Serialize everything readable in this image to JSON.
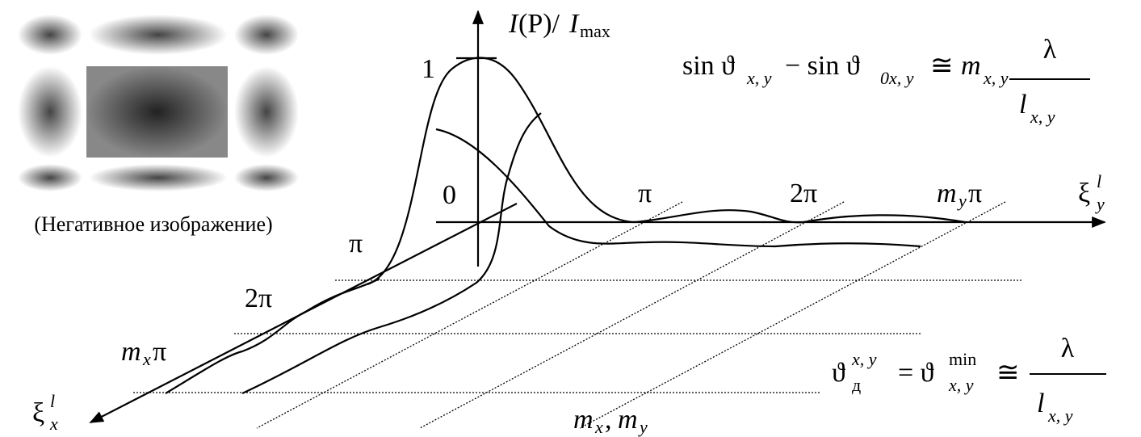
{
  "inset": {
    "caption": "(Негативное изображение)"
  },
  "intensity_axis": {
    "label": {
      "i1": "I",
      "mid": "(P)/",
      "i2": "I",
      "sub": "max"
    },
    "tick": "1",
    "origin": "0"
  },
  "y_axis": {
    "label": {
      "symbol": "ξ",
      "sup": "l",
      "sub": "y"
    },
    "ticks": {
      "pi": "π",
      "two_pi": "2π",
      "m": "m",
      "m_sub": "y",
      "m_pi": "π"
    }
  },
  "x_axis": {
    "label": {
      "symbol": "ξ",
      "sup": "l",
      "sub": "x"
    },
    "ticks": {
      "pi": "π",
      "two_pi": "2π",
      "m": "m",
      "m_sub": "x",
      "m_pi": "π"
    }
  },
  "orders_label": {
    "m1": "m",
    "sub1": "x",
    "comma": ",",
    "m2": "m",
    "sub2": "y"
  },
  "formula_1": {
    "sin1": "sin ϑ",
    "sub1": "x, y",
    "minus": "− sin ϑ",
    "sub2": "0x, y",
    "approx": "≅",
    "m": "m",
    "sub3": "x, y",
    "numerator": "λ",
    "denominator": "l",
    "den_sub": "x, y"
  },
  "formula_2": {
    "theta1": "ϑ",
    "sub1": "д",
    "sup1": "x, y",
    "eq": "= ϑ",
    "sub2": "x, y",
    "sup2": "min",
    "approx": "≅",
    "numerator": "λ",
    "denominator": "l",
    "den_sub": "x, y"
  }
}
